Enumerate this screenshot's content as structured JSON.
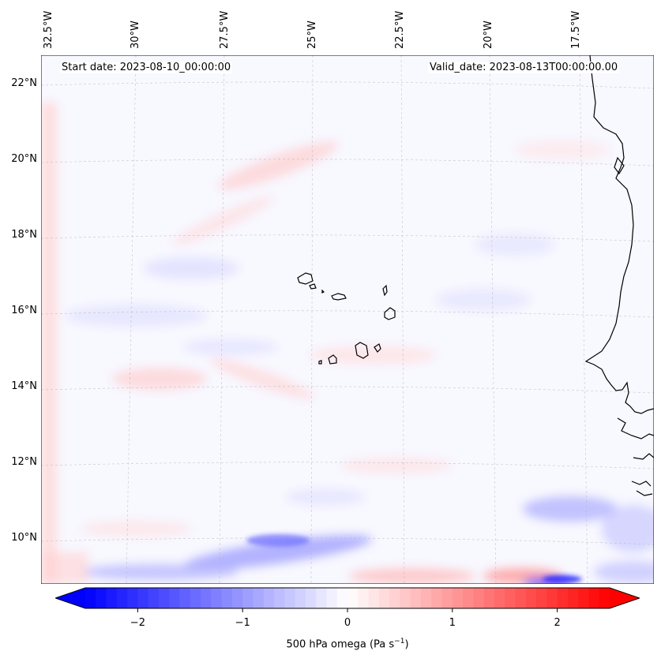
{
  "map": {
    "start_date_label": "Start date: 2023-08-10_00:00:00",
    "valid_date_label": "Valid_date: 2023-08-13T00:00:00.00",
    "lon_labels": [
      "32.5°W",
      "30°W",
      "27.5°W",
      "25°W",
      "22.5°W",
      "20°W",
      "17.5°W"
    ],
    "lat_labels": [
      "22°N",
      "20°N",
      "18°N",
      "16°N",
      "14°N",
      "12°N",
      "10°N"
    ]
  },
  "colorbar": {
    "label_text": "500 hPa omega (Pa s",
    "label_exponent": "−1",
    "label_close": ")",
    "tick_labels": [
      "−2",
      "−1",
      "0",
      "1",
      "2"
    ],
    "tick_values": [
      -2,
      -1,
      0,
      1,
      2
    ],
    "vmin": -2.5,
    "vmax": 2.5,
    "colors": {
      "negative": "#0000ff",
      "zero": "#ffffff",
      "positive": "#ff0000"
    }
  }
}
